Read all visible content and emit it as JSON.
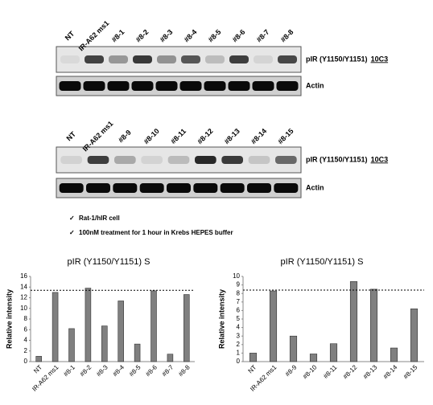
{
  "blots": [
    {
      "lanes": [
        "NT",
        "IR-A62 ms1",
        "#8-1",
        "#8-2",
        "#8-3",
        "#8-4",
        "#8-5",
        "#8-6",
        "#8-7",
        "#8-8"
      ],
      "target": "pIR (Y1150/Y1151)",
      "antibody": "10C3",
      "control": "Actin"
    },
    {
      "lanes": [
        "NT",
        "IR-A62 ms1",
        "#8-9",
        "#8-10",
        "#8-11",
        "#8-12",
        "#8-13",
        "#8-14",
        "#8-15"
      ],
      "target": "pIR (Y1150/Y1151)",
      "antibody": "10C3",
      "control": "Actin"
    }
  ],
  "notes": [
    "Rat-1/hIR cell",
    "100nM treatment for 1 hour in Krebs HEPES buffer"
  ],
  "chart_data": [
    {
      "type": "bar",
      "title": "pIR (Y1150/Y1151) S",
      "y_label": "Relative intensity",
      "categories": [
        "NT",
        "IR-A62 ms1",
        "#8-1",
        "#8-2",
        "#8-3",
        "#8-4",
        "#8-5",
        "#8-6",
        "#8-7",
        "#8-8"
      ],
      "values": [
        1,
        13,
        6.2,
        13.8,
        6.7,
        11.4,
        3.3,
        13.3,
        1.4,
        12.6
      ],
      "color": "#808080",
      "reference_line": 13.4,
      "ylim": [
        0,
        16
      ],
      "yticks": [
        0,
        2,
        4,
        6,
        8,
        10,
        12,
        14,
        16
      ]
    },
    {
      "type": "bar",
      "title": "pIR (Y1150/Y1151) S",
      "y_label": "Relative intensity",
      "categories": [
        "NT",
        "IR-A62 ms1",
        "#8-9",
        "#8-10",
        "#8-11",
        "#8-12",
        "#8-13",
        "#8-14",
        "#8-15"
      ],
      "values": [
        1,
        8.3,
        3.0,
        0.9,
        2.1,
        9.4,
        8.5,
        1.6,
        6.2
      ],
      "color": "#808080",
      "reference_line": 8.4,
      "ylim": [
        0,
        10
      ],
      "yticks": [
        0,
        1,
        2,
        3,
        4,
        5,
        6,
        7,
        8,
        9,
        10
      ]
    }
  ]
}
